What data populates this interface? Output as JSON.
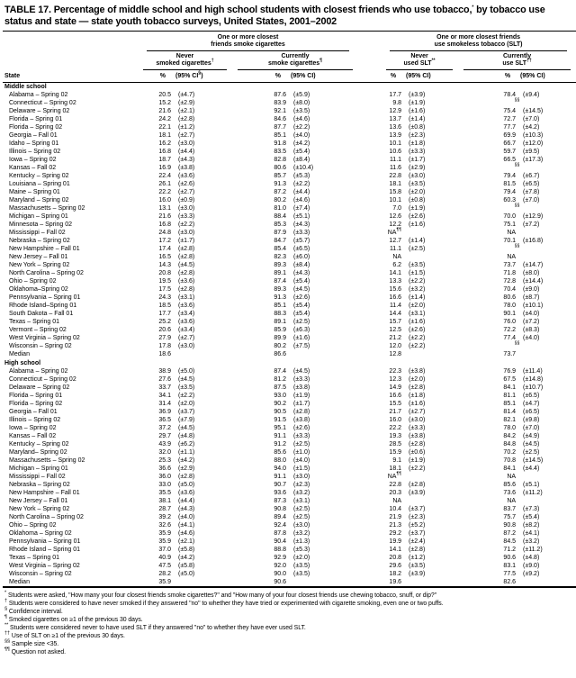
{
  "title": "TABLE 17. Percentage of middle school and high school students with closest friends who use tobacco,^{*} by tobacco use status and state — state youth tobacco surveys, United States, 2001–2002",
  "header": {
    "state_col": "State",
    "groups": [
      {
        "line1": "One or more closest",
        "line2": "friends smoke cigarettes",
        "subs": [
          {
            "line1": "Never",
            "line2": "smoked cigarettes^{†}",
            "pct": "%",
            "ci": "(95% CI^{§})"
          },
          {
            "line1": "Currently",
            "line2": "smoke cigarettes^{¶}",
            "pct": "%",
            "ci": "(95% CI)"
          }
        ]
      },
      {
        "line1": "One or more closest friends",
        "line2": "use smokeless tobacco (SLT)",
        "subs": [
          {
            "line1": "Never",
            "line2": "used SLT^{**}",
            "pct": "%",
            "ci": "(95% CI)"
          },
          {
            "line1": "Currently",
            "line2": "use SLT^{††}",
            "pct": "%",
            "ci": "(95% CI)"
          }
        ]
      }
    ]
  },
  "sections": [
    {
      "label": "Middle school",
      "rows": [
        {
          "state": "Alabama – Spring 02",
          "v": [
            "20.5",
            "(±4.7)",
            "87.6",
            "(±5.9)",
            "17.7",
            "(±3.9)",
            "78.4",
            "(±9.4)"
          ]
        },
        {
          "state": "Connecticut – Spring 02",
          "v": [
            "15.2",
            "(±2.9)",
            "83.9",
            "(±8.0)",
            "9.8",
            "(±1.9)",
            "^{§§}",
            ""
          ]
        },
        {
          "state": "Delaware – Spring 02",
          "v": [
            "21.6",
            "(±2.1)",
            "92.1",
            "(±3.5)",
            "12.9",
            "(±1.6)",
            "75.4",
            "(±14.5)"
          ]
        },
        {
          "state": "Florida – Spring 01",
          "v": [
            "24.2",
            "(±2.8)",
            "84.6",
            "(±4.6)",
            "13.7",
            "(±1.4)",
            "72.7",
            "(±7.0)"
          ]
        },
        {
          "state": "Florida – Spring 02",
          "v": [
            "22.1",
            "(±1.2)",
            "87.7",
            "(±2.2)",
            "13.6",
            "(±0.8)",
            "77.7",
            "(±4.2)"
          ]
        },
        {
          "state": "Georgia – Fall 01",
          "v": [
            "18.1",
            "(±2.7)",
            "85.1",
            "(±4.0)",
            "13.9",
            "(±2.3)",
            "69.9",
            "(±10.3)"
          ]
        },
        {
          "state": "Idaho – Spring 01",
          "v": [
            "16.2",
            "(±3.0)",
            "91.8",
            "(±4.2)",
            "10.1",
            "(±1.8)",
            "66.7",
            "(±12.0)"
          ]
        },
        {
          "state": "Illinois – Spring 02",
          "v": [
            "16.8",
            "(±4.4)",
            "83.5",
            "(±5.4)",
            "10.6",
            "(±3.3)",
            "59.7",
            "(±9.5)"
          ]
        },
        {
          "state": "Iowa – Spring 02",
          "v": [
            "18.7",
            "(±4.3)",
            "82.8",
            "(±8.4)",
            "11.1",
            "(±1.7)",
            "66.5",
            "(±17.3)"
          ]
        },
        {
          "state": "Kansas – Fall 02",
          "v": [
            "16.9",
            "(±3.8)",
            "80.6",
            "(±10.4)",
            "11.6",
            "(±2.9)",
            "^{§§}",
            ""
          ]
        },
        {
          "state": "Kentucky – Spring 02",
          "v": [
            "22.4",
            "(±3.6)",
            "85.7",
            "(±5.3)",
            "22.8",
            "(±3.0)",
            "79.4",
            "(±6.7)"
          ]
        },
        {
          "state": "Louisiana – Spring 01",
          "v": [
            "26.1",
            "(±2.6)",
            "91.3",
            "(±2.2)",
            "18.1",
            "(±3.5)",
            "81.5",
            "(±6.5)"
          ]
        },
        {
          "state": "Maine – Spring 01",
          "v": [
            "22.2",
            "(±2.7)",
            "87.2",
            "(±4.4)",
            "15.8",
            "(±2.0)",
            "79.4",
            "(±7.8)"
          ]
        },
        {
          "state": "Maryland – Spring 02",
          "v": [
            "16.0",
            "(±0.9)",
            "80.2",
            "(±4.6)",
            "10.1",
            "(±0.8)",
            "60.3",
            "(±7.0)"
          ]
        },
        {
          "state": "Massachusetts – Spring 02",
          "v": [
            "13.1",
            "(±3.0)",
            "81.0",
            "(±7.4)",
            "7.0",
            "(±1.9)",
            "^{§§}",
            ""
          ]
        },
        {
          "state": "Michigan – Spring 01",
          "v": [
            "21.6",
            "(±3.3)",
            "88.4",
            "(±5.1)",
            "12.6",
            "(±2.6)",
            "70.0",
            "(±12.9)"
          ]
        },
        {
          "state": "Minnesota – Spring 02",
          "v": [
            "16.8",
            "(±2.2)",
            "85.3",
            "(±4.3)",
            "12.2",
            "(±1.6)",
            "75.1",
            "(±7.2)"
          ]
        },
        {
          "state": "Mississippi – Fall 02",
          "v": [
            "24.8",
            "(±3.0)",
            "87.9",
            "(±3.3)",
            "NA^{¶¶}",
            "",
            "NA",
            ""
          ]
        },
        {
          "state": "Nebraska – Spring 02",
          "v": [
            "17.2",
            "(±1.7)",
            "84.7",
            "(±5.7)",
            "12.7",
            "(±1.4)",
            "70.1",
            "(±16.8)"
          ]
        },
        {
          "state": "New Hampshire – Fall 01",
          "v": [
            "17.4",
            "(±2.8)",
            "85.4",
            "(±6.5)",
            "11.1",
            "(±2.5)",
            "^{§§}",
            ""
          ]
        },
        {
          "state": "New Jersey – Fall 01",
          "v": [
            "16.5",
            "(±2.8)",
            "82.3",
            "(±6.0)",
            "NA",
            "",
            "NA",
            ""
          ]
        },
        {
          "state": "New York – Spring 02",
          "v": [
            "14.3",
            "(±4.5)",
            "89.3",
            "(±8.4)",
            "6.2",
            "(±3.5)",
            "73.7",
            "(±14.7)"
          ]
        },
        {
          "state": "North Carolina – Spring 02",
          "v": [
            "20.8",
            "(±2.8)",
            "89.1",
            "(±4.3)",
            "14.1",
            "(±1.5)",
            "71.8",
            "(±8.0)"
          ]
        },
        {
          "state": "Ohio – Spring 02",
          "v": [
            "19.5",
            "(±3.6)",
            "87.4",
            "(±5.4)",
            "13.3",
            "(±2.2)",
            "72.8",
            "(±14.4)"
          ]
        },
        {
          "state": "Oklahoma–Spring 02",
          "v": [
            "17.5",
            "(±2.8)",
            "89.3",
            "(±4.5)",
            "15.6",
            "(±3.2)",
            "70.4",
            "(±9.0)"
          ]
        },
        {
          "state": "Pennsylvania – Spring 01",
          "v": [
            "24.3",
            "(±3.1)",
            "91.3",
            "(±2.6)",
            "16.6",
            "(±1.4)",
            "80.6",
            "(±8.7)"
          ]
        },
        {
          "state": "Rhode Island–Spring 01",
          "v": [
            "18.5",
            "(±3.6)",
            "85.1",
            "(±5.4)",
            "11.4",
            "(±2.0)",
            "78.0",
            "(±10.1)"
          ]
        },
        {
          "state": "South Dakota – Fall 01",
          "v": [
            "17.7",
            "(±3.4)",
            "88.3",
            "(±5.4)",
            "14.4",
            "(±3.1)",
            "90.1",
            "(±4.0)"
          ]
        },
        {
          "state": "Texas – Spring 01",
          "v": [
            "25.2",
            "(±3.6)",
            "89.1",
            "(±2.5)",
            "15.7",
            "(±1.6)",
            "76.0",
            "(±7.2)"
          ]
        },
        {
          "state": "Vermont – Spring 02",
          "v": [
            "20.6",
            "(±3.4)",
            "85.9",
            "(±6.3)",
            "12.5",
            "(±2.6)",
            "72.2",
            "(±8.3)"
          ]
        },
        {
          "state": "West Virginia – Spring 02",
          "v": [
            "27.9",
            "(±2.7)",
            "89.9",
            "(±1.6)",
            "21.2",
            "(±2.2)",
            "77.4",
            "(±4.0)"
          ]
        },
        {
          "state": "Wisconsin – Spring 02",
          "v": [
            "17.8",
            "(±3.0)",
            "80.2",
            "(±7.5)",
            "12.0",
            "(±2.2)",
            "^{§§}",
            ""
          ]
        },
        {
          "state": "Median",
          "v": [
            "18.6",
            "",
            "86.6",
            "",
            "12.8",
            "",
            "73.7",
            ""
          ]
        }
      ]
    },
    {
      "label": "High school",
      "rows": [
        {
          "state": "Alabama – Spring 02",
          "v": [
            "38.9",
            "(±5.0)",
            "87.4",
            "(±4.5)",
            "22.3",
            "(±3.8)",
            "76.9",
            "(±11.4)"
          ]
        },
        {
          "state": "Connecticut – Spring 02",
          "v": [
            "27.6",
            "(±4.5)",
            "81.2",
            "(±3.3)",
            "12.3",
            "(±2.0)",
            "67.5",
            "(±14.8)"
          ]
        },
        {
          "state": "Delaware – Spring 02",
          "v": [
            "33.7",
            "(±3.5)",
            "87.5",
            "(±3.8)",
            "14.9",
            "(±2.8)",
            "84.1",
            "(±10.7)"
          ]
        },
        {
          "state": "Florida – Spring 01",
          "v": [
            "34.1",
            "(±2.2)",
            "93.0",
            "(±1.9)",
            "16.6",
            "(±1.8)",
            "81.1",
            "(±6.5)"
          ]
        },
        {
          "state": "Florida – Spring 02",
          "v": [
            "31.4",
            "(±2.0)",
            "90.2",
            "(±1.7)",
            "15.5",
            "(±1.6)",
            "85.1",
            "(±4.7)"
          ]
        },
        {
          "state": "Georgia – Fall 01",
          "v": [
            "36.9",
            "(±3.7)",
            "90.5",
            "(±2.8)",
            "21.7",
            "(±2.7)",
            "81.4",
            "(±6.5)"
          ]
        },
        {
          "state": "Illinois – Spring 02",
          "v": [
            "36.5",
            "(±7.9)",
            "91.5",
            "(±3.8)",
            "16.0",
            "(±3.0)",
            "82.1",
            "(±9.8)"
          ]
        },
        {
          "state": "Iowa – Spring 02",
          "v": [
            "37.2",
            "(±4.5)",
            "95.1",
            "(±2.6)",
            "22.2",
            "(±3.3)",
            "78.0",
            "(±7.0)"
          ]
        },
        {
          "state": "Kansas – Fall 02",
          "v": [
            "29.7",
            "(±4.8)",
            "91.1",
            "(±3.3)",
            "19.3",
            "(±3.8)",
            "84.2",
            "(±4.9)"
          ]
        },
        {
          "state": "Kentucky – Spring 02",
          "v": [
            "43.9",
            "(±6.2)",
            "91.2",
            "(±2.5)",
            "28.5",
            "(±2.8)",
            "84.8",
            "(±4.5)"
          ]
        },
        {
          "state": "Maryland– Spring 02",
          "v": [
            "32.0",
            "(±1.1)",
            "85.6",
            "(±1.0)",
            "15.9",
            "(±0.6)",
            "70.2",
            "(±2.5)"
          ]
        },
        {
          "state": "Massachusetts – Spring 02",
          "v": [
            "25.3",
            "(±4.2)",
            "88.0",
            "(±4.0)",
            "9.1",
            "(±1.9)",
            "70.8",
            "(±14.5)"
          ]
        },
        {
          "state": "Michigan – Spring 01",
          "v": [
            "36.6",
            "(±2.9)",
            "94.0",
            "(±1.5)",
            "18.1",
            "(±2.2)",
            "84.1",
            "(±4.4)"
          ]
        },
        {
          "state": "Mississippi – Fall 02",
          "v": [
            "36.0",
            "(±2.8)",
            "91.1",
            "(±3.0)",
            "NA^{¶¶}",
            "",
            "NA",
            ""
          ]
        },
        {
          "state": "Nebraska – Spring 02",
          "v": [
            "33.0",
            "(±5.0)",
            "90.7",
            "(±2.3)",
            "22.8",
            "(±2.8)",
            "85.6",
            "(±5.1)"
          ]
        },
        {
          "state": "New Hampshire – Fall 01",
          "v": [
            "35.5",
            "(±3.6)",
            "93.6",
            "(±3.2)",
            "20.3",
            "(±3.9)",
            "73.6",
            "(±11.2)"
          ]
        },
        {
          "state": "New Jersey – Fall 01",
          "v": [
            "38.1",
            "(±4.4)",
            "87.3",
            "(±3.1)",
            "NA",
            "",
            "NA",
            ""
          ]
        },
        {
          "state": "New York – Spring 02",
          "v": [
            "28.7",
            "(±4.3)",
            "90.8",
            "(±2.5)",
            "10.4",
            "(±3.7)",
            "83.7",
            "(±7.3)"
          ]
        },
        {
          "state": "North Carolina – Spring 02",
          "v": [
            "39.2",
            "(±4.0)",
            "89.4",
            "(±2.5)",
            "21.9",
            "(±2.3)",
            "75.7",
            "(±5.4)"
          ]
        },
        {
          "state": "Ohio – Spring 02",
          "v": [
            "32.6",
            "(±4.1)",
            "92.4",
            "(±3.0)",
            "21.3",
            "(±5.2)",
            "90.8",
            "(±8.2)"
          ]
        },
        {
          "state": "Oklahoma – Spring 02",
          "v": [
            "35.9",
            "(±4.6)",
            "87.8",
            "(±3.2)",
            "29.2",
            "(±3.7)",
            "87.2",
            "(±4.1)"
          ]
        },
        {
          "state": "Pennsylvania – Spring 01",
          "v": [
            "35.9",
            "(±2.1)",
            "90.4",
            "(±1.3)",
            "19.9",
            "(±2.4)",
            "84.5",
            "(±3.2)"
          ]
        },
        {
          "state": "Rhode Island – Spring 01",
          "v": [
            "37.0",
            "(±5.8)",
            "88.8",
            "(±5.3)",
            "14.1",
            "(±2.8)",
            "71.2",
            "(±11.2)"
          ]
        },
        {
          "state": "Texas – Spring 01",
          "v": [
            "40.9",
            "(±4.2)",
            "92.9",
            "(±2.0)",
            "20.8",
            "(±1.2)",
            "90.6",
            "(±4.8)"
          ]
        },
        {
          "state": "West Virginia – Spring 02",
          "v": [
            "47.5",
            "(±5.8)",
            "92.0",
            "(±3.5)",
            "29.6",
            "(±3.5)",
            "83.1",
            "(±9.0)"
          ]
        },
        {
          "state": "Wisconsin – Spring 02",
          "v": [
            "28.2",
            "(±5.0)",
            "90.0",
            "(±3.5)",
            "18.2",
            "(±3.9)",
            "77.5",
            "(±9.2)"
          ]
        },
        {
          "state": "Median",
          "v": [
            "35.9",
            "",
            "90.6",
            "",
            "19.6",
            "",
            "82.6",
            ""
          ]
        }
      ]
    }
  ],
  "footnotes": [
    {
      "m": "*",
      "t": "Students were asked, \"How many your four closest friends smoke cigarettes?\" and \"How many of your four closest friends use chewing tobacco, snuff, or dip?\""
    },
    {
      "m": "†",
      "t": "Students were considered to have never smoked if they answered \"no\" to whether they have tried or experimented with cigarette smoking, even one or two puffs."
    },
    {
      "m": "§",
      "t": "Confidence interval."
    },
    {
      "m": "¶",
      "t": "Smoked cigarettes on ≥1 of the previous 30 days."
    },
    {
      "m": "**",
      "t": "Students were considered never to have used SLT if they answered \"no\" to whether they have ever used SLT."
    },
    {
      "m": "††",
      "t": "Use of SLT on ≥1 of the previous 30 days."
    },
    {
      "m": "§§",
      "t": "Sample size <35."
    },
    {
      "m": "¶¶",
      "t": "Question not asked."
    }
  ]
}
